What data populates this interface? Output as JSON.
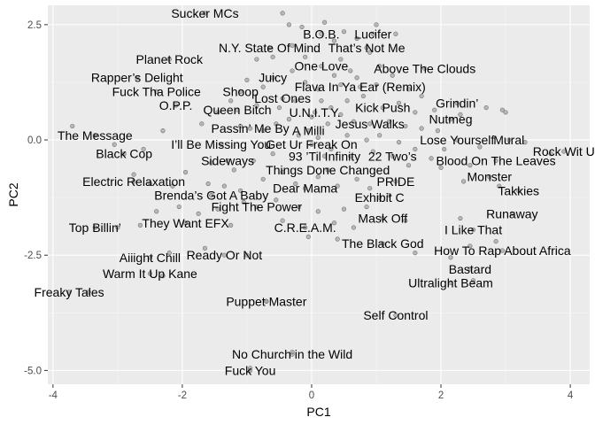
{
  "chart_data": {
    "type": "scatter",
    "title": "",
    "xlabel": "PC1",
    "ylabel": "PC2",
    "xlim": [
      -4.08,
      4.3
    ],
    "ylim": [
      -5.3,
      2.92
    ],
    "xticks": [
      -4,
      -2,
      0,
      2,
      4
    ],
    "xtick_labels": [
      "-4",
      "-2",
      "0",
      "2",
      "4"
    ],
    "yticks": [
      -5.0,
      -2.5,
      0.0,
      2.5
    ],
    "ytick_labels": [
      "-5.0",
      "-2.5",
      "0.0",
      "2.5"
    ],
    "grid": true,
    "colors": {
      "panel": "#ebebeb",
      "grid_major": "#ffffff",
      "grid_minor": "#f5f5f5",
      "point_fill": "#a6a6a6",
      "point_stroke": "#5a5a5a"
    },
    "labeled_points": [
      {
        "label": "Sucker MCs",
        "x": -1.65,
        "y": 2.75
      },
      {
        "label": "B.O.B.",
        "x": 0.15,
        "y": 2.3
      },
      {
        "label": "Lucifer",
        "x": 0.95,
        "y": 2.3
      },
      {
        "label": "N.Y. State Of Mind",
        "x": -0.65,
        "y": 2.0
      },
      {
        "label": "That’s Not Me",
        "x": 0.85,
        "y": 2.0
      },
      {
        "label": "Planet Rock",
        "x": -2.2,
        "y": 1.75
      },
      {
        "label": "One Love",
        "x": 0.15,
        "y": 1.6
      },
      {
        "label": "Above The Clouds",
        "x": 1.75,
        "y": 1.55
      },
      {
        "label": "Rapper’s Delight",
        "x": -2.7,
        "y": 1.35
      },
      {
        "label": "Juicy",
        "x": -0.6,
        "y": 1.35
      },
      {
        "label": "Flava In Ya Ear (Remix)",
        "x": 0.75,
        "y": 1.15
      },
      {
        "label": "Fuck Tha Police",
        "x": -2.4,
        "y": 1.05
      },
      {
        "label": "Shoop",
        "x": -1.1,
        "y": 1.05
      },
      {
        "label": "Lost Ones",
        "x": -0.45,
        "y": 0.9
      },
      {
        "label": "Grindin’",
        "x": 2.25,
        "y": 0.8
      },
      {
        "label": "O.P.P.",
        "x": -2.1,
        "y": 0.75
      },
      {
        "label": "Kick Push",
        "x": 1.1,
        "y": 0.7
      },
      {
        "label": "Queen Bitch",
        "x": -1.15,
        "y": 0.65
      },
      {
        "label": "U.N.I.T.Y.",
        "x": 0.05,
        "y": 0.6
      },
      {
        "label": "Nutmeg",
        "x": 2.15,
        "y": 0.45
      },
      {
        "label": "Jesus Walks",
        "x": 0.9,
        "y": 0.35
      },
      {
        "label": "Passin’ Me By",
        "x": -0.95,
        "y": 0.25
      },
      {
        "label": "A Milli",
        "x": -0.05,
        "y": 0.2
      },
      {
        "label": "The Message",
        "x": -3.35,
        "y": 0.1
      },
      {
        "label": "Lose Yourself",
        "x": 2.25,
        "y": 0.0
      },
      {
        "label": "Mural",
        "x": 3.05,
        "y": 0.0
      },
      {
        "label": "I’ll Be Missing You",
        "x": -1.4,
        "y": -0.1
      },
      {
        "label": "Get Ur Freak On",
        "x": 0.0,
        "y": -0.1
      },
      {
        "label": "Rock Wit U",
        "x": 3.9,
        "y": -0.25
      },
      {
        "label": "Black Cop",
        "x": -2.9,
        "y": -0.3
      },
      {
        "label": "93 ’Til Infinity",
        "x": 0.2,
        "y": -0.35
      },
      {
        "label": "22 Two’s",
        "x": 1.25,
        "y": -0.35
      },
      {
        "label": "Sideways",
        "x": -1.3,
        "y": -0.45
      },
      {
        "label": "Blood On The Leaves",
        "x": 2.85,
        "y": -0.45
      },
      {
        "label": "Things Done Changed",
        "x": 0.25,
        "y": -0.65
      },
      {
        "label": "Monster",
        "x": 2.75,
        "y": -0.8
      },
      {
        "label": "Electric Relaxation",
        "x": -2.75,
        "y": -0.9
      },
      {
        "label": "PRIDE",
        "x": 1.3,
        "y": -0.9
      },
      {
        "label": "Dear Mama",
        "x": -0.1,
        "y": -1.05
      },
      {
        "label": "Takkies",
        "x": 3.2,
        "y": -1.1
      },
      {
        "label": "Brenda’s Got A Baby",
        "x": -1.55,
        "y": -1.2
      },
      {
        "label": "Exhibit C",
        "x": 1.05,
        "y": -1.25
      },
      {
        "label": "Fight The Power",
        "x": -0.85,
        "y": -1.45
      },
      {
        "label": "Runaway",
        "x": 3.1,
        "y": -1.6
      },
      {
        "label": "They Want EFX",
        "x": -1.95,
        "y": -1.8
      },
      {
        "label": "Mask Off",
        "x": 1.1,
        "y": -1.7
      },
      {
        "label": "Top Billin’",
        "x": -3.35,
        "y": -1.9
      },
      {
        "label": "C.R.E.A.M.",
        "x": -0.1,
        "y": -1.9
      },
      {
        "label": "I Like That",
        "x": 2.5,
        "y": -1.95
      },
      {
        "label": "The Black God",
        "x": 1.1,
        "y": -2.25
      },
      {
        "label": "How To Rap About Africa",
        "x": 2.95,
        "y": -2.4
      },
      {
        "label": "Aiiight Chill",
        "x": -2.5,
        "y": -2.55
      },
      {
        "label": "Ready Or Not",
        "x": -1.35,
        "y": -2.5
      },
      {
        "label": "Warm It Up Kane",
        "x": -2.5,
        "y": -2.9
      },
      {
        "label": "Bastard",
        "x": 2.45,
        "y": -2.8
      },
      {
        "label": "Ultralight Beam",
        "x": 2.15,
        "y": -3.1
      },
      {
        "label": "Freaky Tales",
        "x": -3.75,
        "y": -3.3
      },
      {
        "label": "Puppet Master",
        "x": -0.7,
        "y": -3.5
      },
      {
        "label": "Self Control",
        "x": 1.3,
        "y": -3.8
      },
      {
        "label": "No Church in the Wild",
        "x": -0.3,
        "y": -4.65
      },
      {
        "label": "Fuck You",
        "x": -0.95,
        "y": -5.0
      }
    ],
    "unlabeled_points": [
      {
        "x": -0.45,
        "y": 2.75
      },
      {
        "x": -0.35,
        "y": 2.5
      },
      {
        "x": -0.15,
        "y": 2.45
      },
      {
        "x": 0.2,
        "y": 2.55
      },
      {
        "x": 0.5,
        "y": 2.35
      },
      {
        "x": 0.7,
        "y": 2.2
      },
      {
        "x": 1.0,
        "y": 2.5
      },
      {
        "x": 1.3,
        "y": 2.3
      },
      {
        "x": 0.35,
        "y": 2.15
      },
      {
        "x": 0.9,
        "y": 1.9
      },
      {
        "x": -0.3,
        "y": 2.05
      },
      {
        "x": -0.6,
        "y": 1.8
      },
      {
        "x": -0.85,
        "y": 1.75
      },
      {
        "x": -0.1,
        "y": 1.8
      },
      {
        "x": 0.45,
        "y": 1.75
      },
      {
        "x": 1.05,
        "y": 1.6
      },
      {
        "x": 1.25,
        "y": 1.4
      },
      {
        "x": 0.6,
        "y": 1.5
      },
      {
        "x": 0.35,
        "y": 1.4
      },
      {
        "x": -0.3,
        "y": 1.5
      },
      {
        "x": -0.1,
        "y": 1.25
      },
      {
        "x": 0.1,
        "y": 1.1
      },
      {
        "x": 0.45,
        "y": 1.2
      },
      {
        "x": 0.7,
        "y": 1.35
      },
      {
        "x": 1.0,
        "y": 1.2
      },
      {
        "x": 1.5,
        "y": 1.1
      },
      {
        "x": 1.7,
        "y": 0.95
      },
      {
        "x": -0.75,
        "y": 1.15
      },
      {
        "x": -1.0,
        "y": 1.3
      },
      {
        "x": -1.25,
        "y": 0.85
      },
      {
        "x": -1.45,
        "y": 0.6
      },
      {
        "x": -0.85,
        "y": 0.75
      },
      {
        "x": -0.5,
        "y": 0.7
      },
      {
        "x": -0.25,
        "y": 0.85
      },
      {
        "x": 0.15,
        "y": 0.85
      },
      {
        "x": 0.3,
        "y": 0.7
      },
      {
        "x": 0.55,
        "y": 0.85
      },
      {
        "x": 0.8,
        "y": 0.95
      },
      {
        "x": 1.35,
        "y": 0.8
      },
      {
        "x": 1.6,
        "y": 0.6
      },
      {
        "x": 1.9,
        "y": 0.65
      },
      {
        "x": 2.3,
        "y": 0.55
      },
      {
        "x": 2.7,
        "y": 0.7
      },
      {
        "x": 2.95,
        "y": 0.65
      },
      {
        "x": 3.0,
        "y": 0.6
      },
      {
        "x": 0.0,
        "y": 0.5
      },
      {
        "x": 0.25,
        "y": 0.35
      },
      {
        "x": 0.45,
        "y": 0.55
      },
      {
        "x": 0.65,
        "y": 0.4
      },
      {
        "x": 1.2,
        "y": 0.4
      },
      {
        "x": 1.45,
        "y": 0.3
      },
      {
        "x": 1.7,
        "y": 0.25
      },
      {
        "x": 1.95,
        "y": 0.2
      },
      {
        "x": -0.35,
        "y": 0.45
      },
      {
        "x": -0.55,
        "y": 0.35
      },
      {
        "x": -0.75,
        "y": 0.2
      },
      {
        "x": -1.1,
        "y": 0.3
      },
      {
        "x": -1.7,
        "y": 0.35
      },
      {
        "x": -2.3,
        "y": 0.2
      },
      {
        "x": -3.7,
        "y": 0.3
      },
      {
        "x": -3.05,
        "y": -0.1
      },
      {
        "x": -2.6,
        "y": -0.2
      },
      {
        "x": -0.2,
        "y": 0.1
      },
      {
        "x": 0.1,
        "y": 0.05
      },
      {
        "x": 0.55,
        "y": 0.1
      },
      {
        "x": 0.85,
        "y": 0.0
      },
      {
        "x": 1.05,
        "y": 0.1
      },
      {
        "x": 1.35,
        "y": -0.05
      },
      {
        "x": 1.6,
        "y": -0.2
      },
      {
        "x": 2.05,
        "y": -0.2
      },
      {
        "x": 2.6,
        "y": -0.15
      },
      {
        "x": 3.3,
        "y": -0.05
      },
      {
        "x": 3.7,
        "y": -0.3
      },
      {
        "x": 0.3,
        "y": -0.2
      },
      {
        "x": 0.6,
        "y": -0.35
      },
      {
        "x": 0.95,
        "y": -0.25
      },
      {
        "x": 1.5,
        "y": -0.55
      },
      {
        "x": 1.85,
        "y": -0.4
      },
      {
        "x": 2.0,
        "y": -0.6
      },
      {
        "x": 2.45,
        "y": -0.55
      },
      {
        "x": 2.35,
        "y": -0.9
      },
      {
        "x": 2.9,
        "y": -1.0
      },
      {
        "x": -0.6,
        "y": -0.3
      },
      {
        "x": -0.9,
        "y": -0.45
      },
      {
        "x": -1.2,
        "y": -0.65
      },
      {
        "x": -1.55,
        "y": -0.5
      },
      {
        "x": -1.95,
        "y": -0.7
      },
      {
        "x": -2.15,
        "y": -1.0
      },
      {
        "x": -2.5,
        "y": -0.95
      },
      {
        "x": -2.75,
        "y": -0.75
      },
      {
        "x": -1.6,
        "y": -0.95
      },
      {
        "x": -1.35,
        "y": -1.0
      },
      {
        "x": -1.1,
        "y": -1.1
      },
      {
        "x": -0.75,
        "y": -0.85
      },
      {
        "x": -0.45,
        "y": -0.7
      },
      {
        "x": -0.25,
        "y": -0.95
      },
      {
        "x": 0.1,
        "y": -0.8
      },
      {
        "x": 0.4,
        "y": -1.0
      },
      {
        "x": 0.7,
        "y": -0.85
      },
      {
        "x": 0.9,
        "y": -1.05
      },
      {
        "x": 1.2,
        "y": -1.2
      },
      {
        "x": 0.85,
        "y": -1.45
      },
      {
        "x": 0.5,
        "y": -1.5
      },
      {
        "x": 0.1,
        "y": -1.55
      },
      {
        "x": -0.2,
        "y": -1.45
      },
      {
        "x": -0.55,
        "y": -1.3
      },
      {
        "x": -1.05,
        "y": -1.35
      },
      {
        "x": -1.45,
        "y": -1.5
      },
      {
        "x": -1.75,
        "y": -1.6
      },
      {
        "x": -2.05,
        "y": -1.45
      },
      {
        "x": -2.4,
        "y": -1.55
      },
      {
        "x": -2.65,
        "y": -1.85
      },
      {
        "x": -3.0,
        "y": -1.9
      },
      {
        "x": -1.25,
        "y": -1.85
      },
      {
        "x": -0.45,
        "y": -1.75
      },
      {
        "x": 0.35,
        "y": -1.8
      },
      {
        "x": 0.65,
        "y": -1.9
      },
      {
        "x": 1.45,
        "y": -1.75
      },
      {
        "x": 2.3,
        "y": -1.7
      },
      {
        "x": 0.4,
        "y": -2.15
      },
      {
        "x": -0.05,
        "y": -2.1
      },
      {
        "x": -1.65,
        "y": -2.35
      },
      {
        "x": -2.2,
        "y": -2.45
      },
      {
        "x": -1.0,
        "y": -2.5
      },
      {
        "x": 1.6,
        "y": -2.45
      },
      {
        "x": 2.15,
        "y": -2.55
      },
      {
        "x": 2.45,
        "y": -2.3
      },
      {
        "x": 2.85,
        "y": -2.2
      },
      {
        "x": -2.3,
        "y": -2.95
      },
      {
        "x": -3.45,
        "y": -3.3
      },
      {
        "x": 2.5,
        "y": -3.05
      },
      {
        "x": -0.7,
        "y": -3.5
      },
      {
        "x": -0.3,
        "y": -4.6
      },
      {
        "x": -0.95,
        "y": -4.95
      }
    ]
  }
}
